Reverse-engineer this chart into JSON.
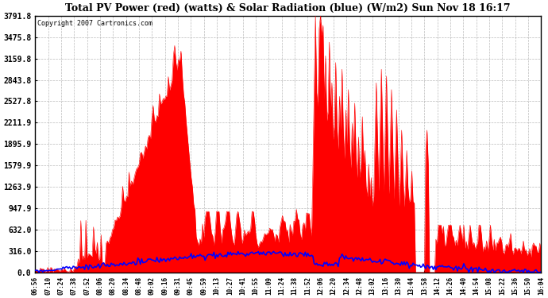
{
  "title": "Total PV Power (red) (watts) & Solar Radiation (blue) (W/m2) Sun Nov 18 16:17",
  "copyright": "Copyright 2007 Cartronics.com",
  "yticks": [
    0.0,
    316.0,
    632.0,
    947.9,
    1263.9,
    1579.9,
    1895.9,
    2211.9,
    2527.8,
    2843.8,
    3159.8,
    3475.8,
    3791.8
  ],
  "ymax": 3791.8,
  "bg_color": "#FFFFFF",
  "plot_bg_color": "#FFFFFF",
  "grid_color": "#AAAAAA",
  "red_color": "#FF0000",
  "blue_color": "#0000FF",
  "x_labels": [
    "06:56",
    "07:10",
    "07:24",
    "07:38",
    "07:52",
    "08:06",
    "08:20",
    "08:34",
    "08:48",
    "09:02",
    "09:16",
    "09:31",
    "09:45",
    "09:59",
    "10:13",
    "10:27",
    "10:41",
    "10:55",
    "11:09",
    "11:24",
    "11:38",
    "11:52",
    "12:06",
    "12:20",
    "12:34",
    "12:48",
    "13:02",
    "13:16",
    "13:30",
    "13:44",
    "13:58",
    "14:12",
    "14:26",
    "14:40",
    "14:54",
    "15:08",
    "15:22",
    "15:36",
    "15:50",
    "16:04"
  ]
}
